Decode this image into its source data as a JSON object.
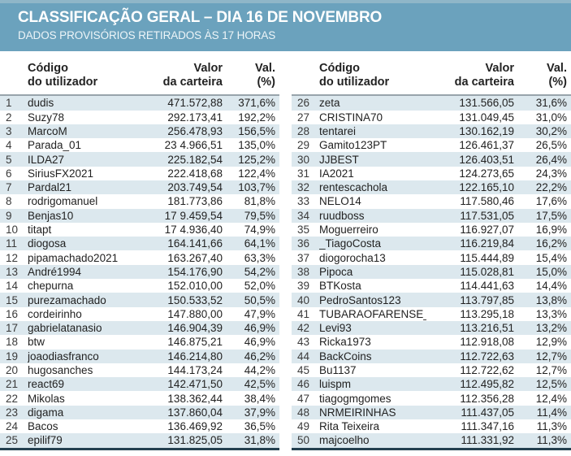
{
  "header": {
    "title": "CLASSIFICAÇÃO GERAL – DIA 16 DE NOVEMBRO",
    "subtitle": "DADOS PROVISÓRIOS RETIRADOS ÀS 17 HORAS"
  },
  "columns": {
    "code": "Código\ndo utilizador",
    "value": "Valor\nda carteira",
    "pct": "Val.\n(%)"
  },
  "colors": {
    "band": "#6BA2BD",
    "band_top": "#8FB6C8",
    "stripe": "#DCE8EE",
    "head_rule": "#98A4AB",
    "bottom_rule": "#24404F",
    "text": "#222222"
  },
  "tables": [
    {
      "rows": [
        {
          "rank": "1",
          "user": "dudis",
          "value": "471.572,88",
          "pct": "371,6%"
        },
        {
          "rank": "2",
          "user": "Suzy78",
          "value": "292.173,41",
          "pct": "192,2%"
        },
        {
          "rank": "3",
          "user": "MarcoM",
          "value": "256.478,93",
          "pct": "156,5%"
        },
        {
          "rank": "4",
          "user": "Parada_01",
          "value": "23 4.966,51",
          "pct": "135,0%"
        },
        {
          "rank": "5",
          "user": "ILDA27",
          "value": "225.182,54",
          "pct": "125,2%"
        },
        {
          "rank": "6",
          "user": "SiriusFX2021",
          "value": "222.418,68",
          "pct": "122,4%"
        },
        {
          "rank": "7",
          "user": "Pardal21",
          "value": "203.749,54",
          "pct": "103,7%"
        },
        {
          "rank": "8",
          "user": "rodrigomanuel",
          "value": "181.773,86",
          "pct": "81,8%"
        },
        {
          "rank": "9",
          "user": "Benjas10",
          "value": "17 9.459,54",
          "pct": "79,5%"
        },
        {
          "rank": "10",
          "user": "titapt",
          "value": "17 4.936,40",
          "pct": "74,9%"
        },
        {
          "rank": "11",
          "user": "diogosa",
          "value": "164.141,66",
          "pct": "64,1%"
        },
        {
          "rank": "12",
          "user": "pipamachado2021",
          "value": "163.267,40",
          "pct": "63,3%"
        },
        {
          "rank": "13",
          "user": "André1994",
          "value": "154.176,90",
          "pct": "54,2%"
        },
        {
          "rank": "14",
          "user": "chepurna",
          "value": "152.010,00",
          "pct": "52,0%"
        },
        {
          "rank": "15",
          "user": "purezamachado",
          "value": "150.533,52",
          "pct": "50,5%"
        },
        {
          "rank": "16",
          "user": "cordeirinho",
          "value": "147.880,00",
          "pct": "47,9%"
        },
        {
          "rank": "17",
          "user": "gabrielatanasio",
          "value": "146.904,39",
          "pct": "46,9%"
        },
        {
          "rank": "18",
          "user": "btw",
          "value": "146.875,21",
          "pct": "46,9%"
        },
        {
          "rank": "19",
          "user": "joaodiasfranco",
          "value": "146.214,80",
          "pct": "46,2%"
        },
        {
          "rank": "20",
          "user": "hugosanches",
          "value": "144.173,24",
          "pct": "44,2%"
        },
        {
          "rank": "21",
          "user": "react69",
          "value": "142.471,50",
          "pct": "42,5%"
        },
        {
          "rank": "22",
          "user": "Mikolas",
          "value": "138.362,44",
          "pct": "38,4%"
        },
        {
          "rank": "23",
          "user": "digama",
          "value": "137.860,04",
          "pct": "37,9%"
        },
        {
          "rank": "24",
          "user": "Bacos",
          "value": "136.469,92",
          "pct": "36,5%"
        },
        {
          "rank": "25",
          "user": "epilif79",
          "value": "131.825,05",
          "pct": "31,8%"
        }
      ]
    },
    {
      "rows": [
        {
          "rank": "26",
          "user": "zeta",
          "value": "131.566,05",
          "pct": "31,6%"
        },
        {
          "rank": "27",
          "user": "CRISTINA70",
          "value": "131.049,45",
          "pct": "31,0%"
        },
        {
          "rank": "28",
          "user": "tentarei",
          "value": "130.162,19",
          "pct": "30,2%"
        },
        {
          "rank": "29",
          "user": "Gamito123PT",
          "value": "126.461,37",
          "pct": "26,5%"
        },
        {
          "rank": "30",
          "user": "JJBEST",
          "value": "126.403,51",
          "pct": "26,4%"
        },
        {
          "rank": "31",
          "user": "IA2021",
          "value": "124.273,65",
          "pct": "24,3%"
        },
        {
          "rank": "32",
          "user": "rentescachola",
          "value": "122.165,10",
          "pct": "22,2%"
        },
        {
          "rank": "33",
          "user": "NELO14",
          "value": "117.580,46",
          "pct": "17,6%"
        },
        {
          "rank": "34",
          "user": "ruudboss",
          "value": "117.531,05",
          "pct": "17,5%"
        },
        {
          "rank": "35",
          "user": "Moguerreiro",
          "value": "116.927,07",
          "pct": "16,9%"
        },
        {
          "rank": "36",
          "user": "_TiagoCosta",
          "value": "116.219,84",
          "pct": "16,2%"
        },
        {
          "rank": "37",
          "user": "diogorocha13",
          "value": "115.444,89",
          "pct": "15,4%"
        },
        {
          "rank": "38",
          "user": "Pipoca",
          "value": "115.028,81",
          "pct": "15,0%"
        },
        {
          "rank": "39",
          "user": "BTKosta",
          "value": "114.441,63",
          "pct": "14,4%"
        },
        {
          "rank": "40",
          "user": "PedroSantos123",
          "value": "113.797,85",
          "pct": "13,8%"
        },
        {
          "rank": "41",
          "user": "TUBARAOFARENSE_",
          "value": "113.295,18",
          "pct": "13,3%"
        },
        {
          "rank": "42",
          "user": "Levi93",
          "value": "113.216,51",
          "pct": "13,2%"
        },
        {
          "rank": "43",
          "user": "Ricka1973",
          "value": "112.918,08",
          "pct": "12,9%"
        },
        {
          "rank": "44",
          "user": "BackCoins",
          "value": "112.722,63",
          "pct": "12,7%"
        },
        {
          "rank": "45",
          "user": "Bu1137",
          "value": "112.722,62",
          "pct": "12,7%"
        },
        {
          "rank": "46",
          "user": "luispm",
          "value": "112.495,82",
          "pct": "12,5%"
        },
        {
          "rank": "47",
          "user": "tiagogmgomes",
          "value": "112.356,28",
          "pct": "12,4%"
        },
        {
          "rank": "48",
          "user": "NRMEIRINHAS",
          "value": "111.437,05",
          "pct": "11,4%"
        },
        {
          "rank": "49",
          "user": "Rita Teixeira",
          "value": "111.347,16",
          "pct": "11,3%"
        },
        {
          "rank": "50",
          "user": "majcoelho",
          "value": "111.331,92",
          "pct": "11,3%"
        }
      ]
    }
  ]
}
